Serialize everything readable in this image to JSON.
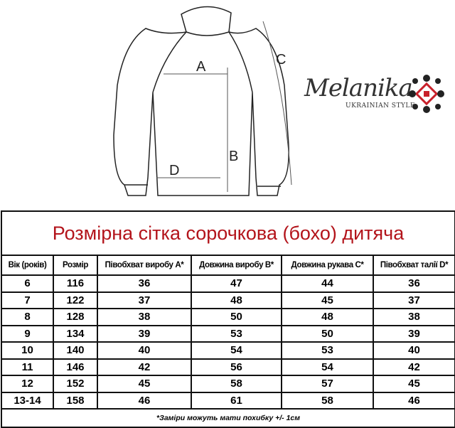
{
  "figure": {
    "labels": {
      "a": "A",
      "b": "B",
      "c": "C",
      "d": "D"
    }
  },
  "logo": {
    "name": "Melanika",
    "tagline": "UKRAINIAN STYLE",
    "colors": {
      "text": "#333333",
      "ornament_red": "#c8202a",
      "ornament_black": "#222222"
    }
  },
  "table": {
    "title": "Розмірна сітка сорочкова (бохо) дитяча",
    "headers": [
      "Вік (років)",
      "Розмір",
      "Півобхват виробу А*",
      "Довжина виробу В*",
      "Довжина рукава С*",
      "Півобхват талії D*"
    ],
    "rows": [
      [
        "6",
        "116",
        "36",
        "47",
        "44",
        "36"
      ],
      [
        "7",
        "122",
        "37",
        "48",
        "45",
        "37"
      ],
      [
        "8",
        "128",
        "38",
        "50",
        "48",
        "38"
      ],
      [
        "9",
        "134",
        "39",
        "53",
        "50",
        "39"
      ],
      [
        "10",
        "140",
        "40",
        "54",
        "53",
        "40"
      ],
      [
        "11",
        "146",
        "42",
        "56",
        "54",
        "42"
      ],
      [
        "12",
        "152",
        "45",
        "58",
        "57",
        "45"
      ],
      [
        "13-14",
        "158",
        "46",
        "61",
        "58",
        "46"
      ]
    ],
    "footnote": "*Заміри можуть мати похибку +/- 1см",
    "colors": {
      "title": "#b3141b"
    }
  }
}
